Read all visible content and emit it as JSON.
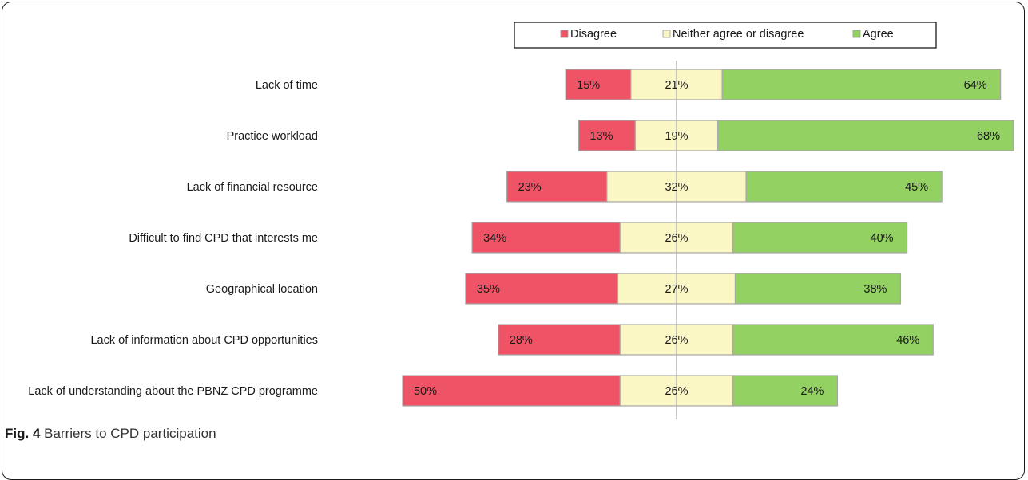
{
  "caption": {
    "fig_label": "Fig. 4",
    "text": "Barriers to CPD participation"
  },
  "chart_data": {
    "type": "bar",
    "orientation": "horizontal",
    "stacked": true,
    "diverging": true,
    "value_unit": "%",
    "categories": [
      "Lack of time",
      "Practice workload",
      "Lack of financial resource",
      "Difficult to find CPD that interests me",
      "Geographical location",
      "Lack of information about CPD opportunities",
      "Lack of understanding about the PBNZ CPD programme"
    ],
    "series": [
      {
        "name": "Disagree",
        "color": "#ef5466",
        "values": [
          15,
          13,
          23,
          34,
          35,
          28,
          50
        ]
      },
      {
        "name": "Neither agree or disagree",
        "color": "#fbf7c4",
        "values": [
          21,
          19,
          32,
          26,
          27,
          26,
          26
        ]
      },
      {
        "name": "Agree",
        "color": "#92d162",
        "values": [
          64,
          68,
          45,
          40,
          38,
          46,
          24
        ]
      }
    ],
    "legend_position": "top",
    "grid": false
  }
}
